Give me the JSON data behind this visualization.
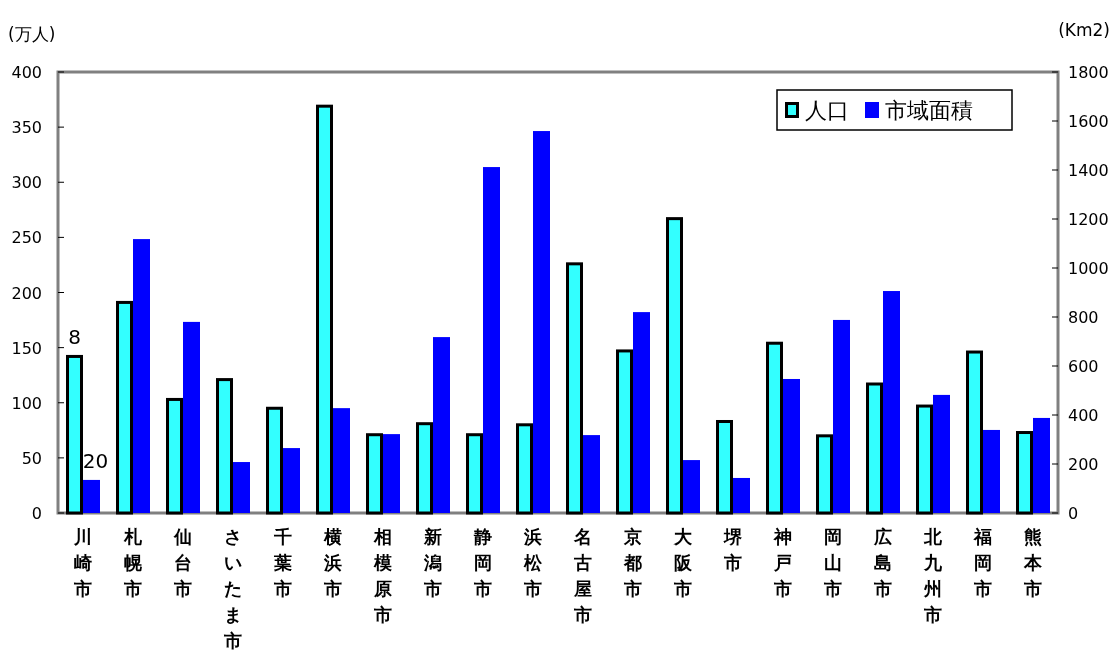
{
  "chart_data": {
    "type": "bar",
    "ylabel": "(万人)",
    "y2label": "(Km2)",
    "categories": [
      "川崎市",
      "札幌市",
      "仙台市",
      "さいたま市",
      "千葉市",
      "横浜市",
      "相模原市",
      "新潟市",
      "静岡市",
      "浜松市",
      "名古屋市",
      "京都市",
      "大阪市",
      "堺市",
      "神戸市",
      "岡山市",
      "広島市",
      "北九州市",
      "福岡市",
      "熊本市"
    ],
    "series": [
      {
        "name": "人口",
        "color": "#33ffff",
        "values": [
          142,
          191,
          103,
          121,
          95,
          369,
          71,
          81,
          71,
          80,
          226,
          147,
          267,
          83,
          154,
          70,
          117,
          97,
          146,
          73
        ]
      },
      {
        "name": "市域面積",
        "color": "#0000ff",
        "axis": "y2",
        "values": [
          135,
          1118,
          780,
          208,
          265,
          428,
          322,
          718,
          1412,
          1559,
          318,
          820,
          216,
          143,
          547,
          788,
          906,
          482,
          339,
          388
        ]
      }
    ],
    "ylim": [
      0,
      400
    ],
    "yticks": [
      0,
      50,
      100,
      150,
      200,
      250,
      300,
      350,
      400
    ],
    "y2lim": [
      0,
      1800
    ],
    "y2ticks": [
      0,
      200,
      400,
      600,
      800,
      1000,
      1200,
      1400,
      1600,
      1800
    ],
    "legend": "top right",
    "grid": false,
    "annotations": [
      "8",
      "20"
    ]
  }
}
